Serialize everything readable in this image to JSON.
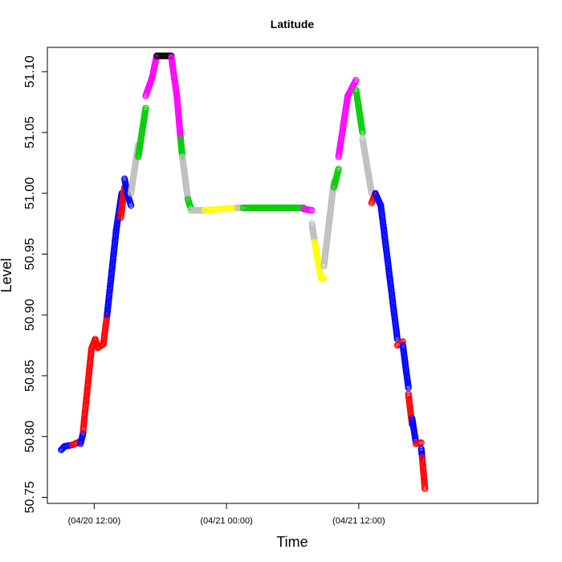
{
  "chart_data": {
    "type": "scatter",
    "title": "Latitude",
    "xlabel": "Time",
    "ylabel": "Level",
    "xlim": [
      "2018-04-20T07:45",
      "2018-04-22T04:15"
    ],
    "ylim": [
      50.745,
      51.12
    ],
    "x_ticks": [
      {
        "x": "2018-04-20T12:00",
        "label": "(04/20 12:00)"
      },
      {
        "x": "2018-04-21T00:00",
        "label": "(04/21 00:00)"
      },
      {
        "x": "2018-04-21T12:00",
        "label": "(04/21 12:00)"
      }
    ],
    "y_ticks": [
      {
        "y": 50.75,
        "label": "50.75"
      },
      {
        "y": 50.8,
        "label": "50.80"
      },
      {
        "y": 50.85,
        "label": "50.85"
      },
      {
        "y": 50.9,
        "label": "50.90"
      },
      {
        "y": 50.95,
        "label": "50.95"
      },
      {
        "y": 51.0,
        "label": "51.00"
      },
      {
        "y": 51.05,
        "label": "51.05"
      },
      {
        "y": 51.1,
        "label": "51.10"
      }
    ],
    "grid": false,
    "legend": false,
    "marker": "open-circle",
    "segments": [
      {
        "color": "#0000ff",
        "points": [
          [
            "2018-04-20T09:00",
            50.789
          ],
          [
            "2018-04-20T09:20",
            50.792
          ],
          [
            "2018-04-20T10:00",
            50.793
          ]
        ]
      },
      {
        "color": "#ff0000",
        "points": [
          [
            "2018-04-20T10:00",
            50.793
          ],
          [
            "2018-04-20T10:45",
            50.796
          ]
        ]
      },
      {
        "color": "#0000ff",
        "points": [
          [
            "2018-04-20T10:45",
            50.794
          ],
          [
            "2018-04-20T11:00",
            50.803
          ]
        ]
      },
      {
        "color": "#ff0000",
        "points": [
          [
            "2018-04-20T11:00",
            50.805
          ],
          [
            "2018-04-20T11:45",
            50.872
          ],
          [
            "2018-04-20T12:05",
            50.88
          ],
          [
            "2018-04-20T12:20",
            50.873
          ],
          [
            "2018-04-20T12:50",
            50.876
          ],
          [
            "2018-04-20T13:10",
            50.9
          ]
        ]
      },
      {
        "color": "#0000ff",
        "points": [
          [
            "2018-04-20T13:10",
            50.9
          ],
          [
            "2018-04-20T14:00",
            50.97
          ],
          [
            "2018-04-20T14:30",
            51.0
          ]
        ]
      },
      {
        "color": "#ff0000",
        "points": [
          [
            "2018-04-20T14:25",
            50.98
          ],
          [
            "2018-04-20T14:45",
            51.005
          ]
        ]
      },
      {
        "color": "#0000ff",
        "points": [
          [
            "2018-04-20T14:45",
            51.012
          ],
          [
            "2018-04-20T15:00",
            51.0
          ],
          [
            "2018-04-20T15:20",
            50.99
          ]
        ]
      },
      {
        "color": "#bebebe",
        "points": [
          [
            "2018-04-20T15:20",
            51.0
          ],
          [
            "2018-04-20T16:00",
            51.04
          ]
        ]
      },
      {
        "color": "#00cd00",
        "points": [
          [
            "2018-04-20T16:00",
            51.03
          ],
          [
            "2018-04-20T16:40",
            51.07
          ]
        ]
      },
      {
        "color": "#ff00ff",
        "points": [
          [
            "2018-04-20T16:40",
            51.08
          ],
          [
            "2018-04-20T17:15",
            51.095
          ],
          [
            "2018-04-20T17:40",
            51.113
          ]
        ]
      },
      {
        "color": "#000000",
        "points": [
          [
            "2018-04-20T17:40",
            51.113
          ],
          [
            "2018-04-20T19:00",
            51.113
          ]
        ]
      },
      {
        "color": "#ff00ff",
        "points": [
          [
            "2018-04-20T19:00",
            51.112
          ],
          [
            "2018-04-20T19:30",
            51.08
          ],
          [
            "2018-04-20T19:50",
            51.045
          ]
        ]
      },
      {
        "color": "#00cd00",
        "points": [
          [
            "2018-04-20T19:50",
            51.045
          ],
          [
            "2018-04-20T20:00",
            51.03
          ]
        ]
      },
      {
        "color": "#bebebe",
        "points": [
          [
            "2018-04-20T20:00",
            51.03
          ],
          [
            "2018-04-20T20:30",
            50.995
          ]
        ]
      },
      {
        "color": "#00cd00",
        "points": [
          [
            "2018-04-20T20:30",
            50.995
          ],
          [
            "2018-04-20T20:45",
            50.988
          ]
        ]
      },
      {
        "color": "#bebebe",
        "points": [
          [
            "2018-04-20T20:45",
            50.986
          ],
          [
            "2018-04-20T22:00",
            50.986
          ]
        ]
      },
      {
        "color": "#ffff00",
        "points": [
          [
            "2018-04-20T22:00",
            50.986
          ],
          [
            "2018-04-21T01:00",
            50.988
          ]
        ]
      },
      {
        "color": "#bebebe",
        "points": [
          [
            "2018-04-21T01:00",
            50.988
          ],
          [
            "2018-04-21T01:30",
            50.988
          ]
        ]
      },
      {
        "color": "#00cd00",
        "points": [
          [
            "2018-04-21T01:30",
            50.988
          ],
          [
            "2018-04-21T07:00",
            50.988
          ]
        ]
      },
      {
        "color": "#ff00ff",
        "points": [
          [
            "2018-04-21T07:00",
            50.987
          ],
          [
            "2018-04-21T07:45",
            50.986
          ]
        ]
      },
      {
        "color": "#bebebe",
        "points": [
          [
            "2018-04-21T07:45",
            50.975
          ],
          [
            "2018-04-21T08:00",
            50.96
          ]
        ]
      },
      {
        "color": "#ffff00",
        "points": [
          [
            "2018-04-21T08:00",
            50.96
          ],
          [
            "2018-04-21T08:35",
            50.93
          ],
          [
            "2018-04-21T08:50",
            50.93
          ]
        ]
      },
      {
        "color": "#bebebe",
        "points": [
          [
            "2018-04-21T08:50",
            50.94
          ],
          [
            "2018-04-21T09:45",
            51.01
          ]
        ]
      },
      {
        "color": "#00cd00",
        "points": [
          [
            "2018-04-21T09:45",
            51.005
          ],
          [
            "2018-04-21T10:10",
            51.02
          ]
        ]
      },
      {
        "color": "#ff00ff",
        "points": [
          [
            "2018-04-21T10:10",
            51.03
          ],
          [
            "2018-04-21T11:00",
            51.08
          ],
          [
            "2018-04-21T11:45",
            51.093
          ]
        ]
      },
      {
        "color": "#00cd00",
        "points": [
          [
            "2018-04-21T11:45",
            51.085
          ],
          [
            "2018-04-21T12:20",
            51.05
          ]
        ]
      },
      {
        "color": "#bebebe",
        "points": [
          [
            "2018-04-21T12:20",
            51.045
          ],
          [
            "2018-04-21T13:10",
            51.0
          ]
        ]
      },
      {
        "color": "#ff0000",
        "points": [
          [
            "2018-04-21T13:10",
            50.992
          ],
          [
            "2018-04-21T13:30",
            51.0
          ]
        ]
      },
      {
        "color": "#0000ff",
        "points": [
          [
            "2018-04-21T13:30",
            51.0
          ],
          [
            "2018-04-21T14:00",
            50.99
          ],
          [
            "2018-04-21T15:30",
            50.88
          ]
        ]
      },
      {
        "color": "#ff0000",
        "points": [
          [
            "2018-04-21T15:30",
            50.875
          ],
          [
            "2018-04-21T16:00",
            50.878
          ]
        ]
      },
      {
        "color": "#0000ff",
        "points": [
          [
            "2018-04-21T16:00",
            50.875
          ],
          [
            "2018-04-21T16:30",
            50.84
          ]
        ]
      },
      {
        "color": "#ff0000",
        "points": [
          [
            "2018-04-21T16:30",
            50.835
          ],
          [
            "2018-04-21T16:50",
            50.81
          ]
        ]
      },
      {
        "color": "#0000ff",
        "points": [
          [
            "2018-04-21T16:50",
            50.815
          ],
          [
            "2018-04-21T17:10",
            50.796
          ]
        ]
      },
      {
        "color": "#ff0000",
        "points": [
          [
            "2018-04-21T17:10",
            50.794
          ],
          [
            "2018-04-21T17:40",
            50.795
          ]
        ]
      },
      {
        "color": "#0000ff",
        "points": [
          [
            "2018-04-21T17:40",
            50.79
          ],
          [
            "2018-04-21T17:45",
            50.783
          ]
        ]
      },
      {
        "color": "#ff0000",
        "points": [
          [
            "2018-04-21T17:45",
            50.783
          ],
          [
            "2018-04-21T18:00",
            50.757
          ]
        ]
      }
    ]
  }
}
